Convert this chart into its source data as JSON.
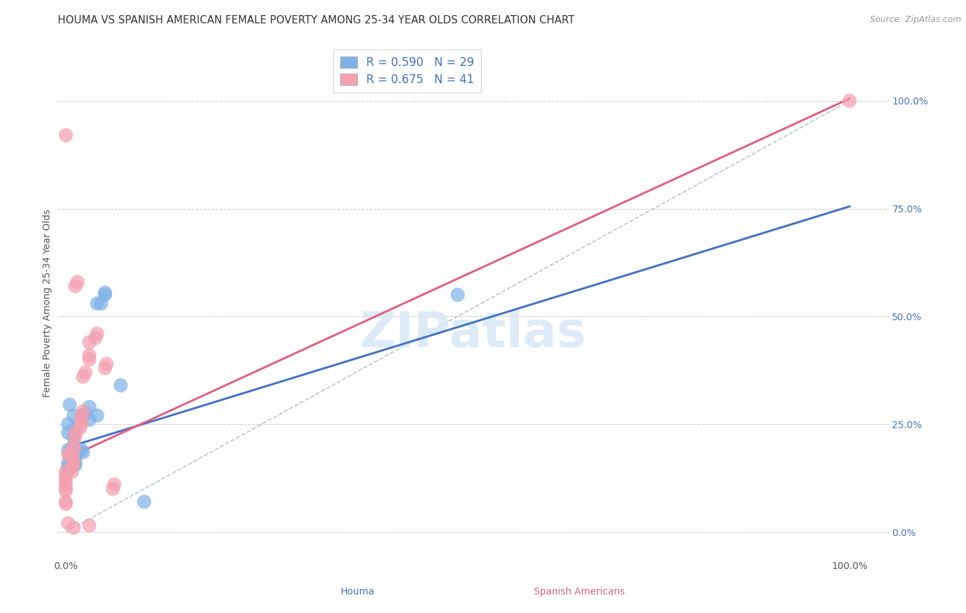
{
  "title": "HOUMA VS SPANISH AMERICAN FEMALE POVERTY AMONG 25-34 YEAR OLDS CORRELATION CHART",
  "source": "Source: ZipAtlas.com",
  "ylabel_label": "Female Poverty Among 25-34 Year Olds",
  "houma_color": "#7eb3e8",
  "spanish_color": "#f4a0b0",
  "houma_line_color": "#4472c4",
  "spanish_line_color": "#e06080",
  "diagonal_color": "#b8c4d8",
  "background": "#ffffff",
  "grid_color": "#cccccc",
  "houma_scatter": [
    [
      0.005,
      0.295
    ],
    [
      0.01,
      0.27
    ],
    [
      0.02,
      0.27
    ],
    [
      0.025,
      0.275
    ],
    [
      0.003,
      0.25
    ],
    [
      0.003,
      0.23
    ],
    [
      0.01,
      0.22
    ],
    [
      0.012,
      0.24
    ],
    [
      0.01,
      0.2
    ],
    [
      0.003,
      0.19
    ],
    [
      0.02,
      0.19
    ],
    [
      0.012,
      0.18
    ],
    [
      0.012,
      0.17
    ],
    [
      0.022,
      0.185
    ],
    [
      0.03,
      0.26
    ],
    [
      0.04,
      0.27
    ],
    [
      0.04,
      0.53
    ],
    [
      0.045,
      0.53
    ],
    [
      0.012,
      0.155
    ],
    [
      0.012,
      0.16
    ],
    [
      0.003,
      0.15
    ],
    [
      0.003,
      0.16
    ],
    [
      0.003,
      0.145
    ],
    [
      0.03,
      0.29
    ],
    [
      0.07,
      0.34
    ],
    [
      0.05,
      0.55
    ],
    [
      0.05,
      0.555
    ],
    [
      0.1,
      0.07
    ],
    [
      0.5,
      0.55
    ]
  ],
  "spanish_scatter": [
    [
      0.0,
      0.095
    ],
    [
      0.0,
      0.1
    ],
    [
      0.0,
      0.11
    ],
    [
      0.0,
      0.12
    ],
    [
      0.0,
      0.13
    ],
    [
      0.0,
      0.14
    ],
    [
      0.008,
      0.14
    ],
    [
      0.008,
      0.15
    ],
    [
      0.01,
      0.16
    ],
    [
      0.01,
      0.17
    ],
    [
      0.003,
      0.18
    ],
    [
      0.01,
      0.19
    ],
    [
      0.01,
      0.2
    ],
    [
      0.012,
      0.22
    ],
    [
      0.012,
      0.23
    ],
    [
      0.018,
      0.24
    ],
    [
      0.02,
      0.25
    ],
    [
      0.02,
      0.26
    ],
    [
      0.02,
      0.27
    ],
    [
      0.022,
      0.28
    ],
    [
      0.022,
      0.36
    ],
    [
      0.025,
      0.37
    ],
    [
      0.03,
      0.4
    ],
    [
      0.03,
      0.41
    ],
    [
      0.03,
      0.44
    ],
    [
      0.038,
      0.45
    ],
    [
      0.04,
      0.46
    ],
    [
      0.012,
      0.57
    ],
    [
      0.015,
      0.58
    ],
    [
      0.0,
      0.07
    ],
    [
      0.0,
      0.065
    ],
    [
      0.05,
      0.38
    ],
    [
      0.052,
      0.39
    ],
    [
      0.01,
      0.01
    ],
    [
      0.03,
      0.015
    ],
    [
      0.06,
      0.1
    ],
    [
      0.062,
      0.11
    ],
    [
      0.0,
      0.92
    ],
    [
      0.003,
      0.02
    ],
    [
      0.005,
      0.18
    ],
    [
      1.0,
      1.0
    ]
  ],
  "houma_line": [
    0.0,
    1.0,
    0.195,
    0.755
  ],
  "spanish_line": [
    0.0,
    1.0,
    0.17,
    1.005
  ],
  "diagonal_line": [
    0.0,
    1.0,
    0.0,
    1.0
  ],
  "houma_R": 0.59,
  "houma_N": 29,
  "spanish_R": 0.675,
  "spanish_N": 41,
  "xlim": [
    -0.01,
    1.05
  ],
  "ylim": [
    -0.06,
    1.12
  ],
  "yticks": [
    0.0,
    0.25,
    0.5,
    0.75,
    1.0
  ],
  "ytick_labels": [
    "0.0%",
    "25.0%",
    "50.0%",
    "75.0%",
    "100.0%"
  ],
  "xticks": [
    0.0,
    1.0
  ],
  "xtick_labels": [
    "0.0%",
    "100.0%"
  ]
}
